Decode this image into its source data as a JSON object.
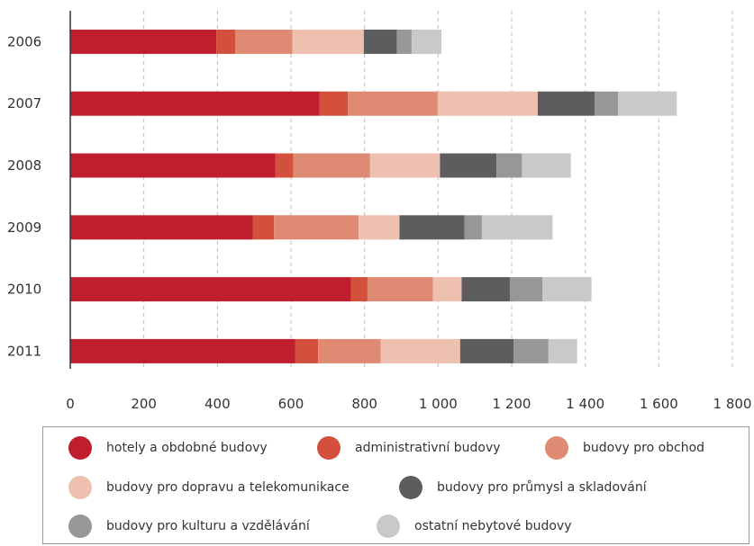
{
  "chart_data": {
    "type": "bar",
    "orientation": "horizontal",
    "stacked": true,
    "title": "",
    "xlabel": "",
    "ylabel": "",
    "categories": [
      "2006",
      "2007",
      "2008",
      "2009",
      "2010",
      "2011"
    ],
    "xlim": [
      0,
      1800
    ],
    "x_ticks": [
      0,
      200,
      400,
      600,
      800,
      1000,
      1200,
      1400,
      1600,
      1800
    ],
    "x_tick_labels": [
      "0",
      "200",
      "400",
      "600",
      "800",
      "1 000",
      "1 200",
      "1 400",
      "1 600",
      "1 800"
    ],
    "grid": "vertical dashed",
    "legend_position": "bottom",
    "series": [
      {
        "name": "hotely a obdobné budovy",
        "color": "#be1e2d",
        "values": [
          397,
          678,
          558,
          496,
          763,
          612
        ]
      },
      {
        "name": "administrativní budovy",
        "color": "#d2503c",
        "values": [
          52,
          77,
          48,
          58,
          45,
          62
        ]
      },
      {
        "name": "budovy pro obchod",
        "color": "#df8a73",
        "values": [
          155,
          244,
          209,
          230,
          178,
          170
        ]
      },
      {
        "name": "budovy pro dopravu a telekomunikace",
        "color": "#edc0b0",
        "values": [
          194,
          272,
          190,
          111,
          78,
          216
        ]
      },
      {
        "name": "budovy pro průmysl a skladování",
        "color": "#5d5d5f",
        "values": [
          90,
          155,
          154,
          177,
          131,
          145
        ]
      },
      {
        "name": "budovy pro kulturu a vzdělávání",
        "color": "#97979a",
        "values": [
          40,
          63,
          69,
          47,
          89,
          95
        ]
      },
      {
        "name": "ostatní nebytové budovy",
        "color": "#c9c9cb",
        "values": [
          81,
          160,
          133,
          192,
          133,
          78
        ]
      }
    ]
  }
}
